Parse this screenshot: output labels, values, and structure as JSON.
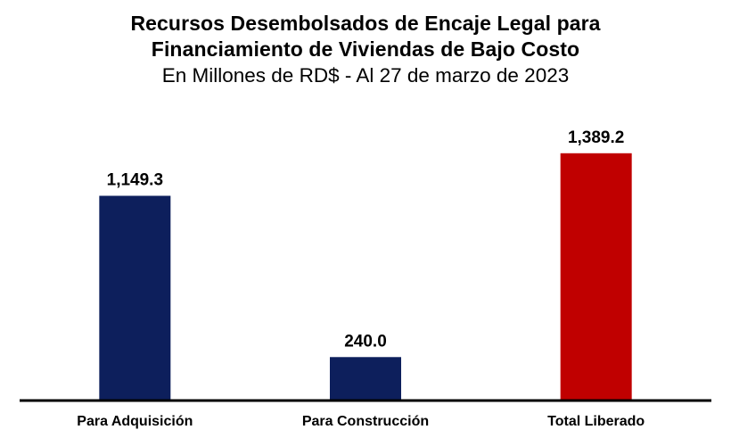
{
  "chart_data": {
    "type": "bar",
    "title_lines": [
      "Recursos Desembolsados de Encaje Legal para",
      "Financiamiento de Viviendas de Bajo Costo"
    ],
    "subtitle": "En Millones de RD$ - Al 27 de marzo de 2023",
    "categories": [
      "Para Adquisición",
      "Para Construcción",
      "Total Liberado"
    ],
    "values": [
      1149.3,
      240.0,
      1389.2
    ],
    "value_labels": [
      "1,149.3",
      "240.0",
      "1,389.2"
    ],
    "colors": [
      "#0d1f5c",
      "#0d1f5c",
      "#c00000"
    ],
    "ylim": [
      0,
      1700
    ],
    "xlabel": "",
    "ylabel": "",
    "grid": false,
    "legend": "none"
  }
}
